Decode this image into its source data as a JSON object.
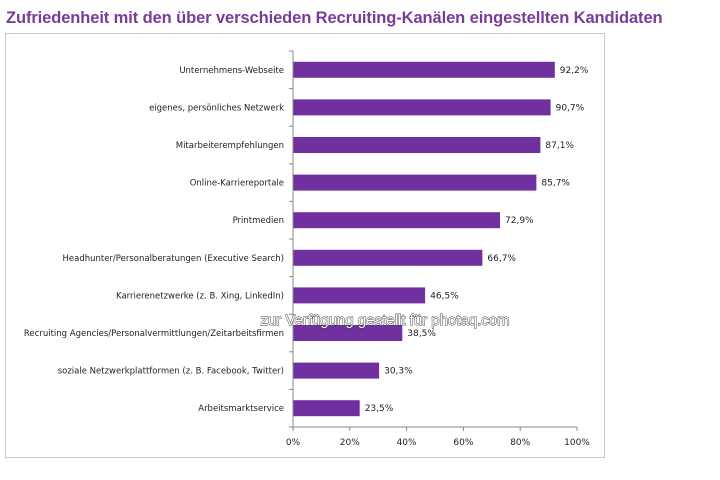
{
  "chart_data": {
    "type": "bar",
    "orientation": "horizontal",
    "title": "Zufriedenheit mit den über verschieden Recruiting-Kanälen eingestellten Kandidaten",
    "categories": [
      "Unternehmens-Webseite",
      "eigenes, persönliches Netzwerk",
      "Mitarbeiterempfehlungen",
      "Online-Karriereportale",
      "Printmedien",
      "Headhunter/Personalberatungen (Executive Search)",
      "Karrierenetzwerke (z. B. Xing, LinkedIn)",
      "Recruiting Agencies/Personalvermittlungen/Zeitarbeitsfirmen",
      "soziale Netzwerkplattformen (z. B. Facebook, Twitter)",
      "Arbeitsmarktservice"
    ],
    "values": [
      92.2,
      90.7,
      87.1,
      85.7,
      72.9,
      66.7,
      46.5,
      38.5,
      30.3,
      23.5
    ],
    "value_labels": [
      "92,2%",
      "90,7%",
      "87,1%",
      "85,7%",
      "72,9%",
      "66,7%",
      "46,5%",
      "38,5%",
      "30,3%",
      "23,5%"
    ],
    "xlim": [
      0,
      100
    ],
    "x_ticks": [
      "0%",
      "20%",
      "40%",
      "60%",
      "80%",
      "100%"
    ],
    "grid": false,
    "bar_color": "#7030a0"
  },
  "watermark": "zur Verfügung gestellt für photaq.com",
  "title_color": "#7a3b9a"
}
